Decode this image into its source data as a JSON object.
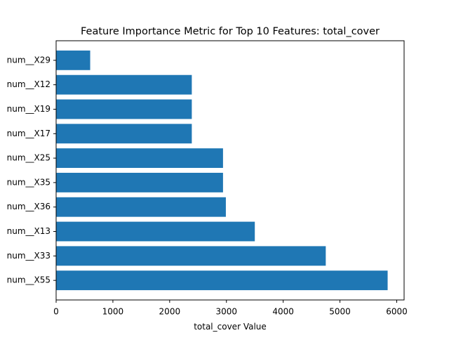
{
  "chart_data": {
    "type": "bar",
    "orientation": "horizontal",
    "title": "Feature Importance Metric for Top 10 Features: total_cover",
    "xlabel": "total_cover Value",
    "ylabel": "",
    "categories": [
      "num__X29",
      "num__X12",
      "num__X19",
      "num__X17",
      "num__X25",
      "num__X35",
      "num__X36",
      "num__X13",
      "num__X33",
      "num__X55"
    ],
    "values": [
      600,
      2390,
      2390,
      2390,
      2940,
      2940,
      2990,
      3500,
      4750,
      5840
    ],
    "xlim": [
      0,
      6130
    ],
    "xticks": [
      0,
      1000,
      2000,
      3000,
      4000,
      5000,
      6000
    ],
    "grid": false,
    "legend": "none",
    "bar_color": "#1f77b4"
  }
}
